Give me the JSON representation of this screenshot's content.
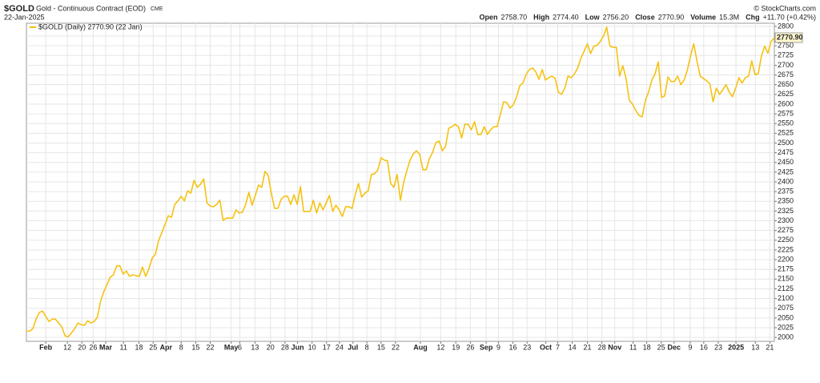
{
  "header": {
    "symbol": "$GOLD",
    "name": "Gold - Continuous Contract (EOD)",
    "exchange": "CME",
    "date": "22-Jan-2025",
    "copyright": "© StockCharts.com",
    "quote": [
      [
        "Open",
        "2758.70"
      ],
      [
        "High",
        "2774.40"
      ],
      [
        "Low",
        "2756.20"
      ],
      [
        "Close",
        "2770.90"
      ],
      [
        "Volume",
        "15.3M"
      ],
      [
        "Chg",
        "+11.70 (+0.42%)"
      ]
    ]
  },
  "chart_data": {
    "type": "line",
    "grid": true,
    "y_axis_side": "right",
    "series": [
      {
        "name": "$GOLD (Daily) 2770.90 (22 Jan)",
        "color": "#f5c211",
        "last_label": "2770.90",
        "values": [
          2016,
          2016,
          2023,
          2047,
          2064,
          2068,
          2054,
          2041,
          2047,
          2047,
          2037,
          2027,
          2004,
          2002,
          2012,
          2023,
          2037,
          2033,
          2031,
          2043,
          2037,
          2041,
          2052,
          2093,
          2118,
          2136,
          2155,
          2161,
          2184,
          2184,
          2163,
          2171,
          2157,
          2161,
          2159,
          2157,
          2181,
          2157,
          2177,
          2204,
          2214,
          2249,
          2270,
          2291,
          2313,
          2309,
          2342,
          2351,
          2363,
          2351,
          2377,
          2371,
          2404,
          2386,
          2394,
          2408,
          2346,
          2338,
          2336,
          2342,
          2353,
          2301,
          2307,
          2307,
          2307,
          2328,
          2320,
          2322,
          2342,
          2373,
          2340,
          2365,
          2392,
          2386,
          2427,
          2417,
          2369,
          2332,
          2332,
          2355,
          2363,
          2363,
          2342,
          2367,
          2342,
          2388,
          2324,
          2324,
          2324,
          2353,
          2320,
          2346,
          2328,
          2346,
          2365,
          2324,
          2340,
          2328,
          2311,
          2336,
          2336,
          2332,
          2367,
          2396,
          2361,
          2371,
          2377,
          2419,
          2421,
          2431,
          2462,
          2456,
          2454,
          2396,
          2386,
          2419,
          2353,
          2398,
          2429,
          2456,
          2472,
          2480,
          2470,
          2431,
          2431,
          2460,
          2476,
          2501,
          2505,
          2480,
          2491,
          2538,
          2542,
          2548,
          2542,
          2513,
          2548,
          2548,
          2534,
          2555,
          2522,
          2522,
          2542,
          2522,
          2534,
          2542,
          2542,
          2573,
          2606,
          2604,
          2590,
          2598,
          2617,
          2647,
          2654,
          2676,
          2689,
          2693,
          2683,
          2664,
          2689,
          2662,
          2668,
          2672,
          2666,
          2631,
          2625,
          2641,
          2672,
          2668,
          2678,
          2693,
          2718,
          2736,
          2755,
          2730,
          2749,
          2751,
          2761,
          2775,
          2798,
          2749,
          2746,
          2746,
          2672,
          2699,
          2666,
          2610,
          2600,
          2584,
          2571,
          2567,
          2610,
          2631,
          2662,
          2678,
          2709,
          2617,
          2621,
          2670,
          2658,
          2658,
          2672,
          2650,
          2662,
          2687,
          2724,
          2755,
          2711,
          2672,
          2666,
          2660,
          2652,
          2606,
          2641,
          2625,
          2637,
          2650,
          2631,
          2619,
          2641,
          2668,
          2654,
          2668,
          2672,
          2711,
          2676,
          2678,
          2724,
          2749,
          2731,
          2761,
          2770.9
        ]
      }
    ],
    "xlim": [
      0,
      232
    ],
    "xticks": [
      {
        "value": 6.0,
        "label": "Feb"
      },
      {
        "value": 12.7,
        "label": "12"
      },
      {
        "value": 17.2,
        "label": "20"
      },
      {
        "value": 20.7,
        "label": "26"
      },
      {
        "value": 24.6,
        "label": "Mar"
      },
      {
        "value": 30.1,
        "label": "11"
      },
      {
        "value": 34.9,
        "label": "18"
      },
      {
        "value": 39.3,
        "label": "25"
      },
      {
        "value": 43.3,
        "label": "Apr"
      },
      {
        "value": 48.0,
        "label": "8"
      },
      {
        "value": 52.5,
        "label": "15"
      },
      {
        "value": 57.0,
        "label": "22"
      },
      {
        "value": 63.5,
        "label": "May"
      },
      {
        "value": 66.2,
        "label": "6"
      },
      {
        "value": 70.9,
        "label": "13"
      },
      {
        "value": 75.7,
        "label": "20"
      },
      {
        "value": 80.2,
        "label": "28"
      },
      {
        "value": 84.1,
        "label": "Jun"
      },
      {
        "value": 88.6,
        "label": "10"
      },
      {
        "value": 93.1,
        "label": "17"
      },
      {
        "value": 97.1,
        "label": "24"
      },
      {
        "value": 101.3,
        "label": "Jul"
      },
      {
        "value": 105.6,
        "label": "8"
      },
      {
        "value": 110.0,
        "label": "15"
      },
      {
        "value": 114.5,
        "label": "22"
      },
      {
        "value": 122.2,
        "label": "Aug"
      },
      {
        "value": 128.5,
        "label": "12"
      },
      {
        "value": 133.2,
        "label": "19"
      },
      {
        "value": 137.7,
        "label": "26"
      },
      {
        "value": 142.6,
        "label": "Sep"
      },
      {
        "value": 146.4,
        "label": "9"
      },
      {
        "value": 150.9,
        "label": "16"
      },
      {
        "value": 155.3,
        "label": "23"
      },
      {
        "value": 161.1,
        "label": "Oct"
      },
      {
        "value": 164.8,
        "label": "7"
      },
      {
        "value": 169.3,
        "label": "14"
      },
      {
        "value": 174.0,
        "label": "21"
      },
      {
        "value": 178.5,
        "label": "28"
      },
      {
        "value": 182.5,
        "label": "Nov"
      },
      {
        "value": 188.2,
        "label": "11"
      },
      {
        "value": 192.4,
        "label": "18"
      },
      {
        "value": 196.9,
        "label": "25"
      },
      {
        "value": 200.9,
        "label": "Dec"
      },
      {
        "value": 205.9,
        "label": "9"
      },
      {
        "value": 210.1,
        "label": "16"
      },
      {
        "value": 214.6,
        "label": "23"
      },
      {
        "value": 220.1,
        "label": "2025"
      },
      {
        "value": 226.1,
        "label": "13"
      },
      {
        "value": 230.6,
        "label": "21"
      }
    ],
    "ylim": [
      1990,
      2808
    ],
    "yticks": [
      2000,
      2025,
      2050,
      2075,
      2100,
      2125,
      2150,
      2175,
      2200,
      2225,
      2250,
      2275,
      2300,
      2325,
      2350,
      2375,
      2400,
      2425,
      2450,
      2475,
      2500,
      2525,
      2550,
      2575,
      2600,
      2625,
      2650,
      2675,
      2700,
      2725,
      2750,
      2775,
      2800
    ]
  }
}
